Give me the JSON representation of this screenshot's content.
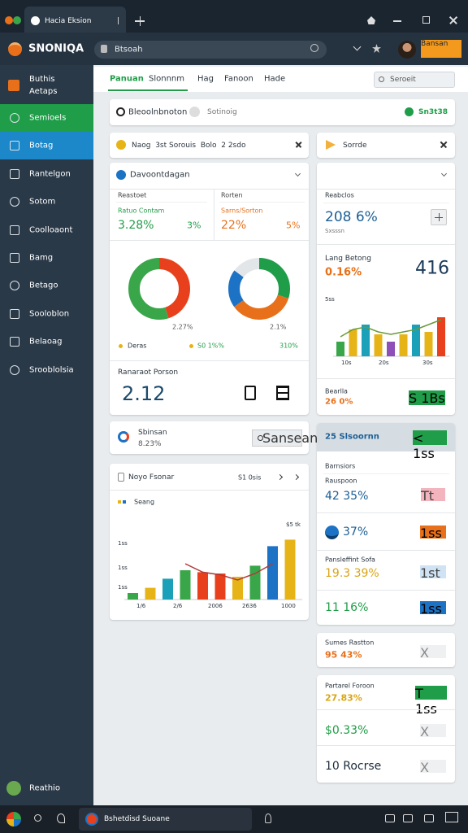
{
  "browser": {
    "tab_title": "Hacia Eksion",
    "logo": "SNONIQA",
    "address": "Btsoah",
    "action_button": "Bansan"
  },
  "sidebar": {
    "header": "Buthis Aetaps",
    "items": [
      "Semioels",
      "Botag",
      "Rantelgon",
      "Sotom",
      "Coolloaont",
      "Bamg",
      "Betago",
      "Sooloblon",
      "Belaoag",
      "Srooblolsia"
    ],
    "footer": "Reathio"
  },
  "nav": {
    "tabs": [
      "Panuan",
      "Slonnnm",
      "Hag",
      "Fanoon",
      "Hade"
    ],
    "search": "Seroeit"
  },
  "banner": {
    "title": "Bleoolnbnoton",
    "subtitle": "Sotinoig",
    "badge": "Sn3t38"
  },
  "filters": {
    "left": "Naog  3st Sorouis  Bolo  2 2sdo",
    "right": "Sorrde"
  },
  "overview": {
    "title": "Davoontdagan",
    "columns": [
      {
        "heading": "Reastoet",
        "label": "Ratuo Contam",
        "value": "3.28%",
        "change": "3%",
        "color": "#1f9d48"
      },
      {
        "heading": "Rorten",
        "label": "Sarns/Sorton",
        "value": "22%",
        "change": "5%",
        "color": "#e8701a"
      }
    ],
    "donuts": [
      {
        "label": "2.27%",
        "values": [
          45,
          55
        ],
        "colors": [
          "#e8401c",
          "#3aa64a"
        ]
      },
      {
        "label": "2.1%",
        "values": [
          30,
          35,
          20,
          15
        ],
        "colors": [
          "#1f9d48",
          "#e8701a",
          "#1c72c4",
          "#e3e6e8"
        ]
      }
    ],
    "legend": [
      "Deras",
      "S0 1%%",
      "310%"
    ],
    "metric_label": "Ranaraot Porson",
    "metric_value": "2.12"
  },
  "summary": {
    "heading": "Reabclos",
    "value": "208 6%",
    "sub": "Sxsssn",
    "label": "Lang Betong",
    "pct": "0.16%",
    "big": "416",
    "chart": {
      "y_label": "5ss",
      "x_labels": [
        "10s",
        "20s",
        "30s"
      ],
      "values": [
        30,
        55,
        65,
        45,
        30,
        45,
        65,
        50,
        80
      ],
      "colors": [
        "#3aa64a",
        "#e6b417",
        "#1aa0b8",
        "#e6b417",
        "#8e4fb8",
        "#e6b417",
        "#1aa0b8",
        "#e6b417",
        "#e8401c"
      ],
      "line": [
        40,
        55,
        60,
        50,
        45,
        50,
        55,
        65,
        75
      ],
      "line_color": "#6a9a3a"
    },
    "footer_label": "Bearlla",
    "footer_value": "26 0%",
    "button": "S 1Bs"
  },
  "search_card": {
    "title": "Sbinsan",
    "value": "8.23%",
    "button": "Sansean"
  },
  "trend": {
    "title": "Noyo Fsonar",
    "controls": "S1 0sis",
    "legend": "Seang",
    "corner": "$5 tk",
    "y_labels": [
      "1ss",
      "1ss",
      "1ss"
    ],
    "x_labels": [
      "1/6",
      "2/6",
      "2006",
      "2636",
      "1000"
    ],
    "chart": {
      "values": [
        10,
        18,
        32,
        45,
        42,
        40,
        35,
        52,
        82,
        92
      ],
      "colors": [
        "#3aa64a",
        "#e6b417",
        "#1aa0b8",
        "#3aa64a",
        "#e8401c",
        "#e8401c",
        "#e6b417",
        "#3aa64a",
        "#1c72c4",
        "#e6b417"
      ],
      "line": [
        null,
        null,
        null,
        55,
        42,
        38,
        30,
        40,
        55,
        null
      ],
      "line_color": "#b03a3a"
    }
  },
  "list": {
    "title": "25 Slsoornn",
    "button": "< 1ss",
    "section": "Barnsiors",
    "items": [
      {
        "label": "Rauspoon",
        "value": "42 35%",
        "color": "#1c5f95",
        "button": "Tt",
        "button_color": "#f4b4bd"
      },
      {
        "value": "37%",
        "color": "#1c5f95",
        "button": "1ss",
        "button_color": "#e8701a"
      },
      {
        "label": "Pansleffint Sofa",
        "value": "19.3 39%",
        "color": "#d9a514",
        "button": "1st",
        "button_color": "#cfe3f5"
      },
      {
        "value": "11 16%",
        "color": "#1f9d48",
        "button": "1ss",
        "button_color": "#1c72c4"
      }
    ]
  },
  "stats": [
    {
      "label": "Sumes Rastton",
      "value": "95 43%",
      "color": "#e8701a",
      "button": "X"
    },
    {
      "label": "Partarel Foroon",
      "value": "27.83%",
      "color": "#d9a514",
      "button": "T 1ss",
      "rows": [
        {
          "value": "$0.33%",
          "color": "#1f9d48",
          "button": "X"
        },
        {
          "value": "10 Rocrse",
          "color": "#1b2b3a",
          "button": "X"
        }
      ]
    }
  ],
  "taskbar": {
    "app": "Bshetdisd Suoane"
  }
}
